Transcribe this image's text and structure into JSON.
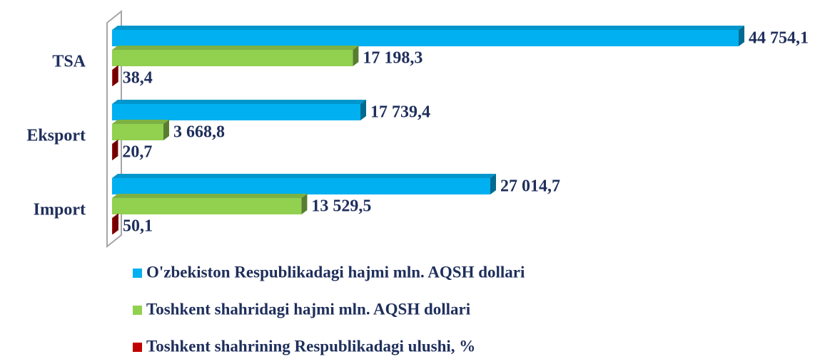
{
  "chart_data": {
    "type": "bar",
    "orientation": "horizontal",
    "categories": [
      "TSA",
      "Eksport",
      "Import"
    ],
    "series": [
      {
        "name": "O'zbekiston Respublikadagi hajmi mln. AQSH dollari",
        "color": "#00b0f0",
        "values": [
          44754.1,
          17739.4,
          27014.7
        ],
        "value_labels": [
          "44 754,1",
          "17 739,4",
          "27 014,7"
        ]
      },
      {
        "name": "Toshkent shahridagi hajmi mln. AQSH dollari",
        "color": "#92d050",
        "values": [
          17198.3,
          3668.8,
          13529.5
        ],
        "value_labels": [
          "17 198,3",
          "3 668,8",
          "13 529,5"
        ]
      },
      {
        "name": "Toshkent shahrining Respublikadagi ulushi, %",
        "color": "#c00000",
        "values": [
          38.4,
          20.7,
          50.1
        ],
        "value_labels": [
          "38,4",
          "20,7",
          "50,1"
        ]
      }
    ],
    "legend": "bottom"
  }
}
